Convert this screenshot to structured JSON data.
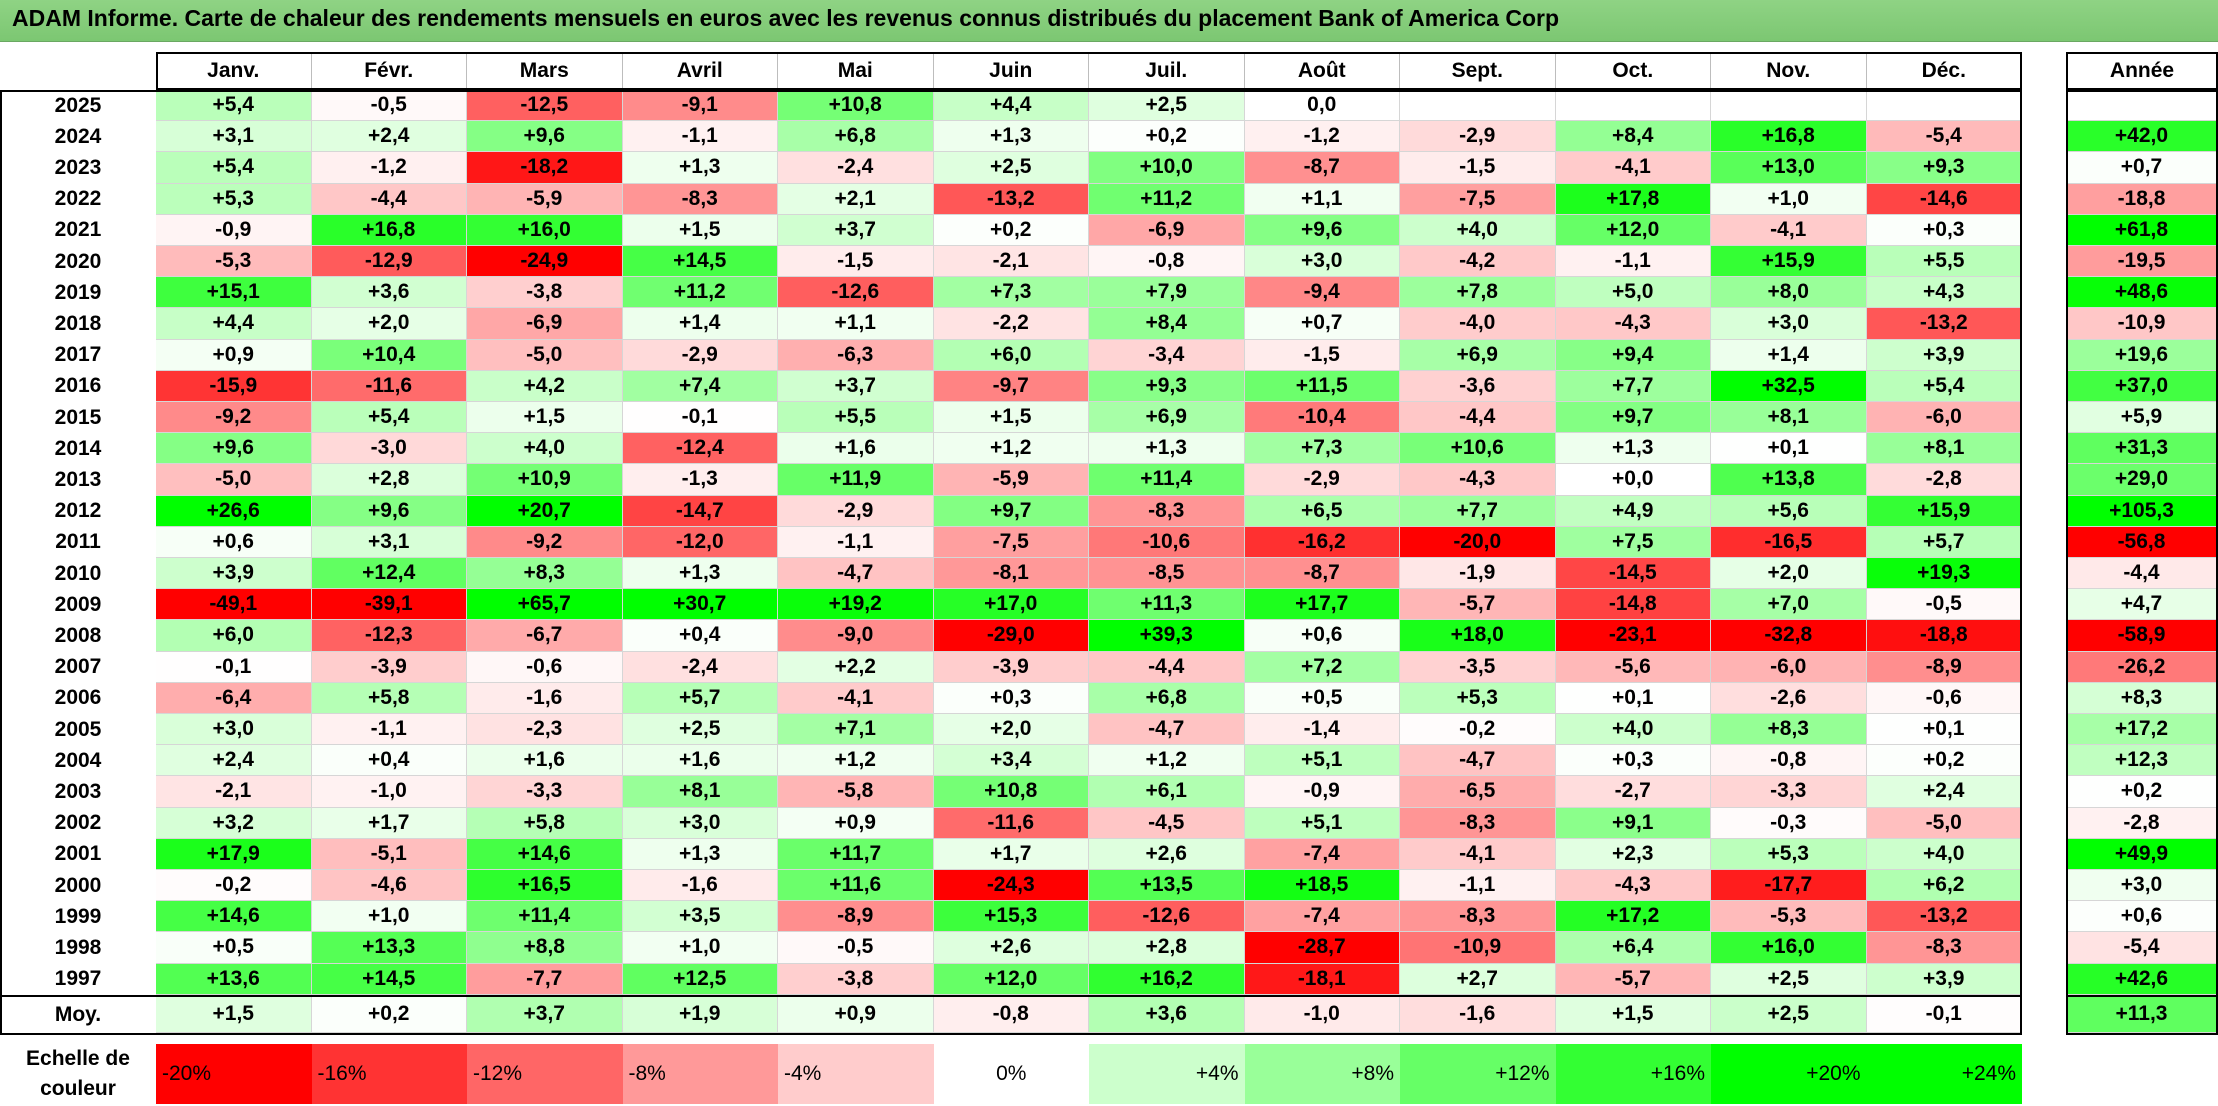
{
  "title": "ADAM Informe. Carte de chaleur des rendements mensuels en euros avec les revenus connus distribués du placement Bank of America Corp",
  "chart_data": {
    "type": "heatmap",
    "title": "ADAM Informe. Carte de chaleur des rendements mensuels en euros avec les revenus connus distribués du placement Bank of America Corp",
    "months": [
      "Janv.",
      "Févr.",
      "Mars",
      "Avril",
      "Mai",
      "Juin",
      "Juil.",
      "Août",
      "Sept.",
      "Oct.",
      "Nov.",
      "Déc."
    ],
    "year_header": "Année",
    "rows": [
      {
        "year": "2025",
        "values": [
          "+5,4",
          "-0,5",
          "-12,5",
          "-9,1",
          "+10,8",
          "+4,4",
          "+2,5",
          "0,0",
          "",
          "",
          "",
          ""
        ],
        "annual": ""
      },
      {
        "year": "2024",
        "values": [
          "+3,1",
          "+2,4",
          "+9,6",
          "-1,1",
          "+6,8",
          "+1,3",
          "+0,2",
          "-1,2",
          "-2,9",
          "+8,4",
          "+16,8",
          "-5,4"
        ],
        "annual": "+42,0"
      },
      {
        "year": "2023",
        "values": [
          "+5,4",
          "-1,2",
          "-18,2",
          "+1,3",
          "-2,4",
          "+2,5",
          "+10,0",
          "-8,7",
          "-1,5",
          "-4,1",
          "+13,0",
          "+9,3"
        ],
        "annual": "+0,7"
      },
      {
        "year": "2022",
        "values": [
          "+5,3",
          "-4,4",
          "-5,9",
          "-8,3",
          "+2,1",
          "-13,2",
          "+11,2",
          "+1,1",
          "-7,5",
          "+17,8",
          "+1,0",
          "-14,6"
        ],
        "annual": "-18,8"
      },
      {
        "year": "2021",
        "values": [
          "-0,9",
          "+16,8",
          "+16,0",
          "+1,5",
          "+3,7",
          "+0,2",
          "-6,9",
          "+9,6",
          "+4,0",
          "+12,0",
          "-4,1",
          "+0,3"
        ],
        "annual": "+61,8"
      },
      {
        "year": "2020",
        "values": [
          "-5,3",
          "-12,9",
          "-24,9",
          "+14,5",
          "-1,5",
          "-2,1",
          "-0,8",
          "+3,0",
          "-4,2",
          "-1,1",
          "+15,9",
          "+5,5"
        ],
        "annual": "-19,5"
      },
      {
        "year": "2019",
        "values": [
          "+15,1",
          "+3,6",
          "-3,8",
          "+11,2",
          "-12,6",
          "+7,3",
          "+7,9",
          "-9,4",
          "+7,8",
          "+5,0",
          "+8,0",
          "+4,3"
        ],
        "annual": "+48,6"
      },
      {
        "year": "2018",
        "values": [
          "+4,4",
          "+2,0",
          "-6,9",
          "+1,4",
          "+1,1",
          "-2,2",
          "+8,4",
          "+0,7",
          "-4,0",
          "-4,3",
          "+3,0",
          "-13,2"
        ],
        "annual": "-10,9"
      },
      {
        "year": "2017",
        "values": [
          "+0,9",
          "+10,4",
          "-5,0",
          "-2,9",
          "-6,3",
          "+6,0",
          "-3,4",
          "-1,5",
          "+6,9",
          "+9,4",
          "+1,4",
          "+3,9"
        ],
        "annual": "+19,6"
      },
      {
        "year": "2016",
        "values": [
          "-15,9",
          "-11,6",
          "+4,2",
          "+7,4",
          "+3,7",
          "-9,7",
          "+9,3",
          "+11,5",
          "-3,6",
          "+7,7",
          "+32,5",
          "+5,4"
        ],
        "annual": "+37,0"
      },
      {
        "year": "2015",
        "values": [
          "-9,2",
          "+5,4",
          "+1,5",
          "-0,1",
          "+5,5",
          "+1,5",
          "+6,9",
          "-10,4",
          "-4,4",
          "+9,7",
          "+8,1",
          "-6,0"
        ],
        "annual": "+5,9"
      },
      {
        "year": "2014",
        "values": [
          "+9,6",
          "-3,0",
          "+4,0",
          "-12,4",
          "+1,6",
          "+1,2",
          "+1,3",
          "+7,3",
          "+10,6",
          "+1,3",
          "+0,1",
          "+8,1"
        ],
        "annual": "+31,3"
      },
      {
        "year": "2013",
        "values": [
          "-5,0",
          "+2,8",
          "+10,9",
          "-1,3",
          "+11,9",
          "-5,9",
          "+11,4",
          "-2,9",
          "-4,3",
          "+0,0",
          "+13,8",
          "-2,8"
        ],
        "annual": "+29,0"
      },
      {
        "year": "2012",
        "values": [
          "+26,6",
          "+9,6",
          "+20,7",
          "-14,7",
          "-2,9",
          "+9,7",
          "-8,3",
          "+6,5",
          "+7,7",
          "+4,9",
          "+5,6",
          "+15,9"
        ],
        "annual": "+105,3"
      },
      {
        "year": "2011",
        "values": [
          "+0,6",
          "+3,1",
          "-9,2",
          "-12,0",
          "-1,1",
          "-7,5",
          "-10,6",
          "-16,2",
          "-20,0",
          "+7,5",
          "-16,5",
          "+5,7"
        ],
        "annual": "-56,8"
      },
      {
        "year": "2010",
        "values": [
          "+3,9",
          "+12,4",
          "+8,3",
          "+1,3",
          "-4,7",
          "-8,1",
          "-8,5",
          "-8,7",
          "-1,9",
          "-14,5",
          "+2,0",
          "+19,3"
        ],
        "annual": "-4,4"
      },
      {
        "year": "2009",
        "values": [
          "-49,1",
          "-39,1",
          "+65,7",
          "+30,7",
          "+19,2",
          "+17,0",
          "+11,3",
          "+17,7",
          "-5,7",
          "-14,8",
          "+7,0",
          "-0,5"
        ],
        "annual": "+4,7"
      },
      {
        "year": "2008",
        "values": [
          "+6,0",
          "-12,3",
          "-6,7",
          "+0,4",
          "-9,0",
          "-29,0",
          "+39,3",
          "+0,6",
          "+18,0",
          "-23,1",
          "-32,8",
          "-18,8"
        ],
        "annual": "-58,9"
      },
      {
        "year": "2007",
        "values": [
          "-0,1",
          "-3,9",
          "-0,6",
          "-2,4",
          "+2,2",
          "-3,9",
          "-4,4",
          "+7,2",
          "-3,5",
          "-5,6",
          "-6,0",
          "-8,9"
        ],
        "annual": "-26,2"
      },
      {
        "year": "2006",
        "values": [
          "-6,4",
          "+5,8",
          "-1,6",
          "+5,7",
          "-4,1",
          "+0,3",
          "+6,8",
          "+0,5",
          "+5,3",
          "+0,1",
          "-2,6",
          "-0,6"
        ],
        "annual": "+8,3"
      },
      {
        "year": "2005",
        "values": [
          "+3,0",
          "-1,1",
          "-2,3",
          "+2,5",
          "+7,1",
          "+2,0",
          "-4,7",
          "-1,4",
          "-0,2",
          "+4,0",
          "+8,3",
          "+0,1"
        ],
        "annual": "+17,2"
      },
      {
        "year": "2004",
        "values": [
          "+2,4",
          "+0,4",
          "+1,6",
          "+1,6",
          "+1,2",
          "+3,4",
          "+1,2",
          "+5,1",
          "-4,7",
          "+0,3",
          "-0,8",
          "+0,2"
        ],
        "annual": "+12,3"
      },
      {
        "year": "2003",
        "values": [
          "-2,1",
          "-1,0",
          "-3,3",
          "+8,1",
          "-5,8",
          "+10,8",
          "+6,1",
          "-0,9",
          "-6,5",
          "-2,7",
          "-3,3",
          "+2,4"
        ],
        "annual": "+0,2"
      },
      {
        "year": "2002",
        "values": [
          "+3,2",
          "+1,7",
          "+5,8",
          "+3,0",
          "+0,9",
          "-11,6",
          "-4,5",
          "+5,1",
          "-8,3",
          "+9,1",
          "-0,3",
          "-5,0"
        ],
        "annual": "-2,8"
      },
      {
        "year": "2001",
        "values": [
          "+17,9",
          "-5,1",
          "+14,6",
          "+1,3",
          "+11,7",
          "+1,7",
          "+2,6",
          "-7,4",
          "-4,1",
          "+2,3",
          "+5,3",
          "+4,0"
        ],
        "annual": "+49,9"
      },
      {
        "year": "2000",
        "values": [
          "-0,2",
          "-4,6",
          "+16,5",
          "-1,6",
          "+11,6",
          "-24,3",
          "+13,5",
          "+18,5",
          "-1,1",
          "-4,3",
          "-17,7",
          "+6,2"
        ],
        "annual": "+3,0"
      },
      {
        "year": "1999",
        "values": [
          "+14,6",
          "+1,0",
          "+11,4",
          "+3,5",
          "-8,9",
          "+15,3",
          "-12,6",
          "-7,4",
          "-8,3",
          "+17,2",
          "-5,3",
          "-13,2"
        ],
        "annual": "+0,6"
      },
      {
        "year": "1998",
        "values": [
          "+0,5",
          "+13,3",
          "+8,8",
          "+1,0",
          "-0,5",
          "+2,6",
          "+2,8",
          "-28,7",
          "-10,9",
          "+6,4",
          "+16,0",
          "-8,3"
        ],
        "annual": "-5,4"
      },
      {
        "year": "1997",
        "values": [
          "+13,6",
          "+14,5",
          "-7,7",
          "+12,5",
          "-3,8",
          "+12,0",
          "+16,2",
          "-18,1",
          "+2,7",
          "-5,7",
          "+2,5",
          "+3,9"
        ],
        "annual": "+42,6"
      }
    ],
    "average": {
      "label": "Moy.",
      "values": [
        "+1,5",
        "+0,2",
        "+3,7",
        "+1,9",
        "+0,9",
        "-0,8",
        "+3,6",
        "-1,0",
        "-1,6",
        "+1,5",
        "+2,5",
        "-0,1"
      ],
      "annual": "+11,3"
    },
    "color_scale": {
      "label": "Echelle de couleur",
      "steps": [
        "-20%",
        "-16%",
        "-12%",
        "-8%",
        "-4%",
        "0%",
        "+4%",
        "+8%",
        "+12%",
        "+16%",
        "+20%",
        "+24%"
      ],
      "values": [
        -20,
        -16,
        -12,
        -8,
        -4,
        0,
        4,
        8,
        12,
        16,
        20,
        24
      ],
      "colors": [
        "#ff0000",
        "#ff3333",
        "#ff6666",
        "#ff9999",
        "#ffcccc",
        "#ffffff",
        "#ccffcc",
        "#99ff99",
        "#66ff66",
        "#33ff33",
        "#00ff00",
        "#00ff00"
      ]
    }
  }
}
